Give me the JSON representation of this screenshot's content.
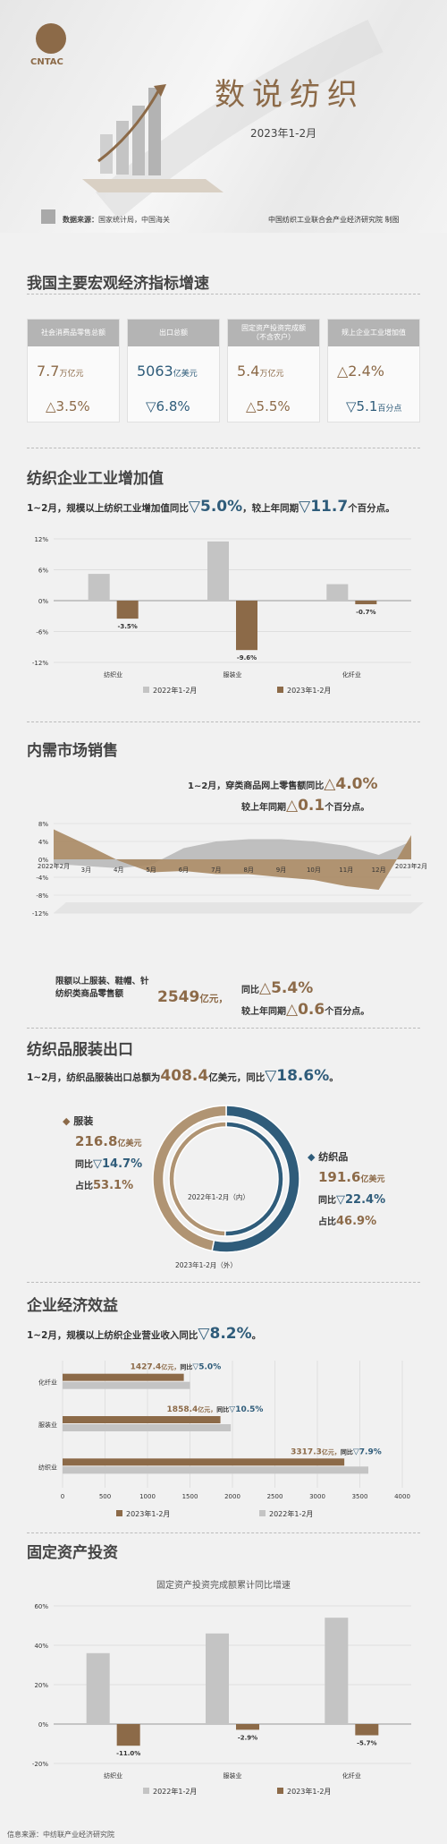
{
  "header": {
    "logo_text": "CNTAC",
    "title": "数说纺织",
    "period": "2023年1-2月",
    "source_label": "数据来源：",
    "source_text": "国家统计局，中国海关",
    "publisher": "中国纺织工业联合会产业经济研究院 制图"
  },
  "section1": {
    "title": "我国主要宏观经济指标增速",
    "kpis": [
      {
        "label": "社会消费品零售总额",
        "sublabel": "",
        "value": "7.7",
        "unit": "万亿元",
        "change": "△3.5%",
        "tone": "gold"
      },
      {
        "label": "出口总额",
        "sublabel": "",
        "value": "5063",
        "unit": "亿美元",
        "change": "▽6.8%",
        "tone": "blue"
      },
      {
        "label": "固定资产投资完成额",
        "sublabel": "（不含农户）",
        "value": "5.4",
        "unit": "万亿元",
        "change": "△5.5%",
        "tone": "gold"
      },
      {
        "label": "规上企业工业增加值",
        "sublabel": "",
        "value": "△2.4%",
        "unit": "",
        "change": "▽5.1",
        "change_unit": "百分点",
        "tone": "blue"
      }
    ]
  },
  "section2": {
    "title": "纺织企业工业增加值",
    "lead_a": "1~2月，规模以上纺织工业增加值同比",
    "lead_b": "▽5.0%",
    "lead_c": "，较上年同期",
    "lead_d": "▽11.7",
    "lead_e": "个百分点。"
  },
  "section3": {
    "title": "内需市场销售",
    "note1_a": "1~2月，穿类商品网上零售额同比",
    "note1_b": "△4.0%",
    "note1_c": "较上年同期",
    "note1_d": "△0.1",
    "note1_e": "个百分点。",
    "note2_label": "限额以上服装、鞋帽、针纺织类商品零售额",
    "note2_value": "2549",
    "note2_unit": "亿元，",
    "note2_b": "同比",
    "note2_c": "△5.4%",
    "note2_d": "较上年同期",
    "note2_e": "△0.6",
    "note2_f": "个百分点。"
  },
  "section4": {
    "title": "纺织品服装出口",
    "lead_a": "1~2月，纺织品服装出口总额为",
    "lead_b": "408.4",
    "lead_c": "亿美元",
    "lead_d": "，同比",
    "lead_e": "▽18.6%",
    "lead_f": "。",
    "apparel": {
      "name": "服装",
      "value": "216.8",
      "unit": "亿美元",
      "yoy_label": "同比",
      "yoy": "▽14.7%",
      "share_label": "占比",
      "share": "53.1%"
    },
    "textiles": {
      "name": "纺织品",
      "value": "191.6",
      "unit": "亿美元",
      "yoy_label": "同比",
      "yoy": "▽22.4%",
      "share_label": "占比",
      "share": "46.9%"
    },
    "inner_label": "2022年1-2月（内）",
    "outer_label": "2023年1-2月（外）"
  },
  "section5": {
    "title": "企业经济效益",
    "lead_a": "1~2月，规模以上纺织企业营业收入同比",
    "lead_b": "▽8.2%",
    "lead_c": "。"
  },
  "section6": {
    "title": "固定资产投资",
    "chart_title": "固定资产投资完成额累计同比增速"
  },
  "footer": {
    "text": "信息来源：中纺联产业经济研究院"
  },
  "chart_data": [
    {
      "type": "bar",
      "id": "industrial-value-added",
      "categories": [
        "纺织业",
        "服装业",
        "化纤业"
      ],
      "series": [
        {
          "name": "2022年1-2月",
          "values": [
            5.2,
            11.5,
            3.2
          ]
        },
        {
          "name": "2023年1-2月",
          "values": [
            -3.5,
            -9.6,
            -0.7
          ]
        }
      ],
      "data_labels": [
        "-3.5%",
        "-9.6%",
        "-0.7%"
      ],
      "ylim": [
        -12,
        12
      ],
      "yticks": [
        "12%",
        "6%",
        "0%",
        "-6%",
        "-12%"
      ],
      "colors": [
        "#c4c4c4",
        "#8c6a48"
      ]
    },
    {
      "type": "area",
      "id": "domestic-sales",
      "x": [
        "2022年2月",
        "3月",
        "4月",
        "5月",
        "6月",
        "7月",
        "8月",
        "9月",
        "10月",
        "11月",
        "12月",
        "2023年2月"
      ],
      "series": [
        {
          "name": "",
          "values": [
            6.7,
            3.3,
            -0.3,
            -2.9,
            -2.6,
            -3.3,
            -3.3,
            -4.0,
            -4.6,
            -6.0,
            -6.8,
            5.4
          ]
        },
        {
          "name": "",
          "values": [
            -1.0,
            -1.5,
            -2.0,
            -1.2,
            2.5,
            4.0,
            4.5,
            4.5,
            4.0,
            3.0,
            1.0,
            4.0
          ]
        }
      ],
      "yticks": [
        "8%",
        "4%",
        "0%",
        "-4%",
        "-8%",
        "-12%"
      ],
      "ylim": [
        -12,
        8
      ],
      "colors": [
        "#a88863",
        "#b9b9b9"
      ]
    },
    {
      "type": "pie",
      "id": "exports-donut",
      "rings": [
        {
          "name": "2022年1-2月（内）",
          "slices": [
            {
              "label": "服装",
              "value": 50.3
            },
            {
              "label": "纺织品",
              "value": 49.7
            }
          ]
        },
        {
          "name": "2023年1-2月（外）",
          "slices": [
            {
              "label": "服装",
              "value": 53.1
            },
            {
              "label": "纺织品",
              "value": 46.9
            }
          ]
        }
      ],
      "colors": [
        "#b09473",
        "#2f5c7a"
      ]
    },
    {
      "type": "bar",
      "id": "operating-revenue",
      "orientation": "horizontal",
      "categories": [
        "化纤业",
        "服装业",
        "纺织业"
      ],
      "series": [
        {
          "name": "2023年1-2月",
          "values": [
            1427.4,
            1858.4,
            3317.3
          ]
        },
        {
          "name": "2022年1-2月",
          "values": [
            1500,
            1980,
            3600
          ]
        }
      ],
      "data_labels": [
        {
          "value": "1427.4",
          "unit": "亿元，",
          "yoy_label": "同比",
          "yoy": "▽5.0%"
        },
        {
          "value": "1858.4",
          "unit": "亿元，",
          "yoy_label": "同比",
          "yoy": "▽10.5%"
        },
        {
          "value": "3317.3",
          "unit": "亿元，",
          "yoy_label": "同比",
          "yoy": "▽7.9%"
        }
      ],
      "xlim": [
        0,
        4000
      ],
      "xticks": [
        "0",
        "500",
        "1000",
        "1500",
        "2000",
        "2500",
        "3000",
        "3500",
        "4000"
      ],
      "colors": [
        "#8c6a48",
        "#c4c4c4"
      ]
    },
    {
      "type": "bar",
      "id": "fixed-asset-investment",
      "title": "固定资产投资完成额累计同比增速",
      "categories": [
        "纺织业",
        "服装业",
        "化纤业"
      ],
      "series": [
        {
          "name": "2022年1-2月",
          "values": [
            36,
            46,
            54
          ]
        },
        {
          "name": "2023年1-2月",
          "values": [
            -11.0,
            -2.9,
            -5.7
          ]
        }
      ],
      "data_labels": [
        "-11.0%",
        "-2.9%",
        "-5.7%"
      ],
      "ylim": [
        -20,
        60
      ],
      "yticks": [
        "60%",
        "40%",
        "20%",
        "0%",
        "-20%"
      ],
      "colors": [
        "#c4c4c4",
        "#8c6a48"
      ]
    }
  ]
}
